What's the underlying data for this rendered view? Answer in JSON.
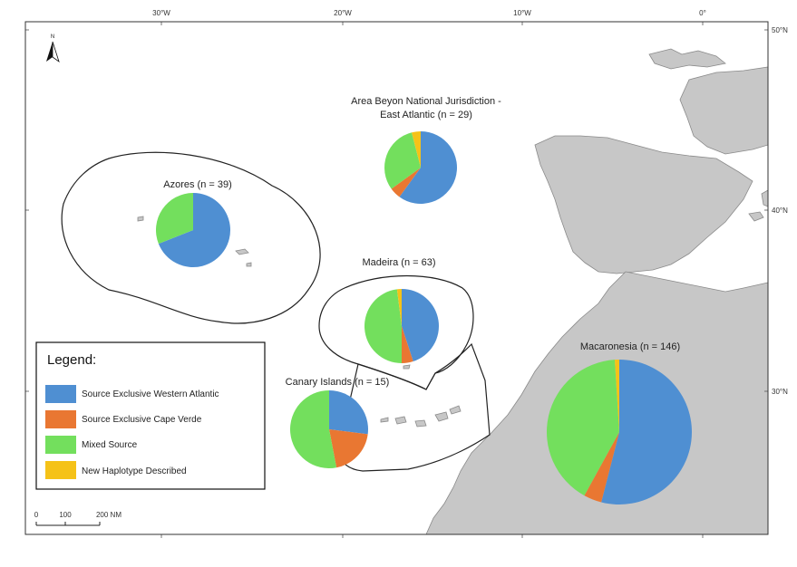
{
  "map": {
    "top_labels": [
      "30°W",
      "20°W",
      "10°W",
      "0°"
    ],
    "right_labels": [
      "50°N",
      "40°N",
      "30°N"
    ],
    "north_arrow_label": "N",
    "scale_bar": {
      "tick_labels": [
        "0",
        "100",
        "200 NM"
      ]
    }
  },
  "colors": {
    "western_atlantic": "#4f8fd2",
    "cape_verde": "#e97732",
    "mixed": "#73df5d",
    "new_haplotype": "#f5c218",
    "land": "#c7c7c7",
    "sea": "#ffffff"
  },
  "legend": {
    "title": "Legend:",
    "items": [
      {
        "label": "Source Exclusive Western Atlantic",
        "color_key": "western_atlantic"
      },
      {
        "label": "Source Exclusive Cape Verde",
        "color_key": "cape_verde"
      },
      {
        "label": "Mixed Source",
        "color_key": "mixed"
      },
      {
        "label": "New Haplotype Described",
        "color_key": "new_haplotype"
      }
    ]
  },
  "regions": [
    {
      "name": "Area Beyon National Jurisdiction - East Atlantic (n = 29)",
      "title_lines": [
        "Area Beyon National Jurisdiction -",
        "East Atlantic (n = 29)"
      ],
      "n": 29,
      "slices": {
        "western_atlantic": 0.6,
        "cape_verde": 0.05,
        "mixed": 0.31,
        "new_haplotype": 0.04
      }
    },
    {
      "name": "Azores (n = 39)",
      "title_lines": [
        "Azores (n = 39)"
      ],
      "n": 39,
      "slices": {
        "western_atlantic": 0.69,
        "cape_verde": 0,
        "mixed": 0.31,
        "new_haplotype": 0
      }
    },
    {
      "name": "Madeira (n = 63)",
      "title_lines": [
        "Madeira (n = 63)"
      ],
      "n": 63,
      "slices": {
        "western_atlantic": 0.45,
        "cape_verde": 0.05,
        "mixed": 0.48,
        "new_haplotype": 0.02
      }
    },
    {
      "name": "Canary Islands (n = 15)",
      "title_lines": [
        "Canary Islands (n = 15)"
      ],
      "n": 15,
      "slices": {
        "western_atlantic": 0.27,
        "cape_verde": 0.2,
        "mixed": 0.53,
        "new_haplotype": 0
      }
    },
    {
      "name": "Macaronesia (n = 146)",
      "title_lines": [
        "Macaronesia (n = 146)"
      ],
      "n": 146,
      "slices": {
        "western_atlantic": 0.54,
        "cape_verde": 0.04,
        "mixed": 0.41,
        "new_haplotype": 0.01
      }
    }
  ]
}
